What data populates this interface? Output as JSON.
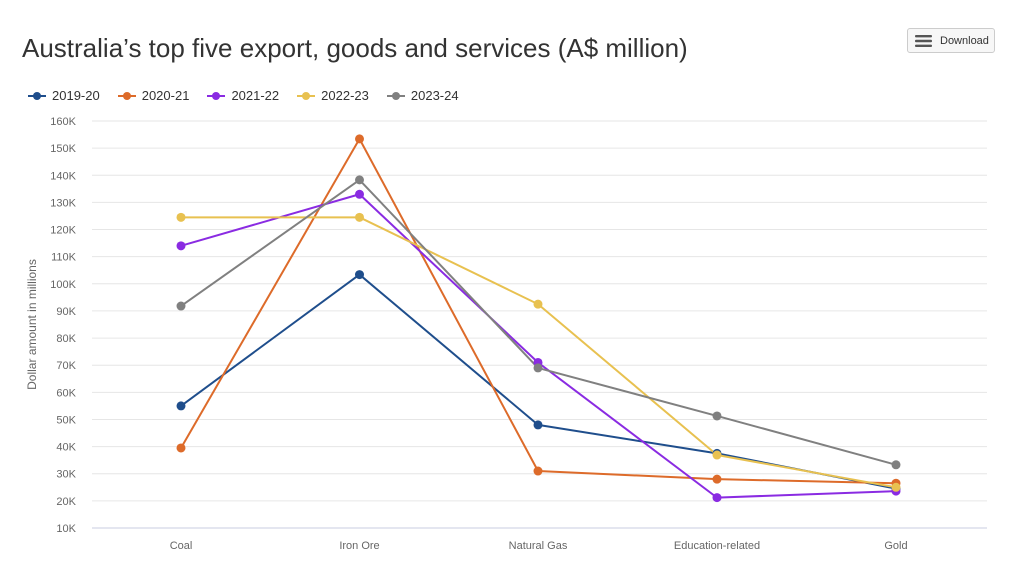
{
  "chart_data": {
    "type": "line",
    "title": "Australia’s top five export, goods and services (A$ million)",
    "xlabel": "",
    "ylabel": "Dollar amount in millions",
    "categories": [
      "Coal",
      "Iron Ore",
      "Natural Gas",
      "Education-related",
      "Gold"
    ],
    "ylim": [
      10000,
      160000
    ],
    "yticks": [
      10000,
      20000,
      30000,
      40000,
      50000,
      60000,
      70000,
      80000,
      90000,
      100000,
      110000,
      120000,
      130000,
      140000,
      150000,
      160000
    ],
    "ytick_labels": [
      "10K",
      "20K",
      "30K",
      "40K",
      "50K",
      "60K",
      "70K",
      "80K",
      "90K",
      "100K",
      "110K",
      "120K",
      "130K",
      "140K",
      "150K",
      "160K"
    ],
    "grid": true,
    "legend_position": "top-left",
    "series": [
      {
        "name": "2019-20",
        "color": "#1f4e8c",
        "values": [
          55000,
          103400,
          48000,
          37500,
          24500
        ]
      },
      {
        "name": "2020-21",
        "color": "#dd6b2a",
        "values": [
          39500,
          153400,
          31000,
          28000,
          26500
        ]
      },
      {
        "name": "2021-22",
        "color": "#8a2be2",
        "values": [
          114000,
          133000,
          71000,
          21200,
          23600
        ]
      },
      {
        "name": "2022-23",
        "color": "#e8c150",
        "values": [
          124500,
          124500,
          92500,
          36900,
          25000
        ]
      },
      {
        "name": "2023-24",
        "color": "#808080",
        "values": [
          91800,
          138300,
          69000,
          51300,
          33300
        ]
      }
    ]
  },
  "toolbar": {
    "download_label": "Download",
    "download_icon": "menu-icon"
  }
}
